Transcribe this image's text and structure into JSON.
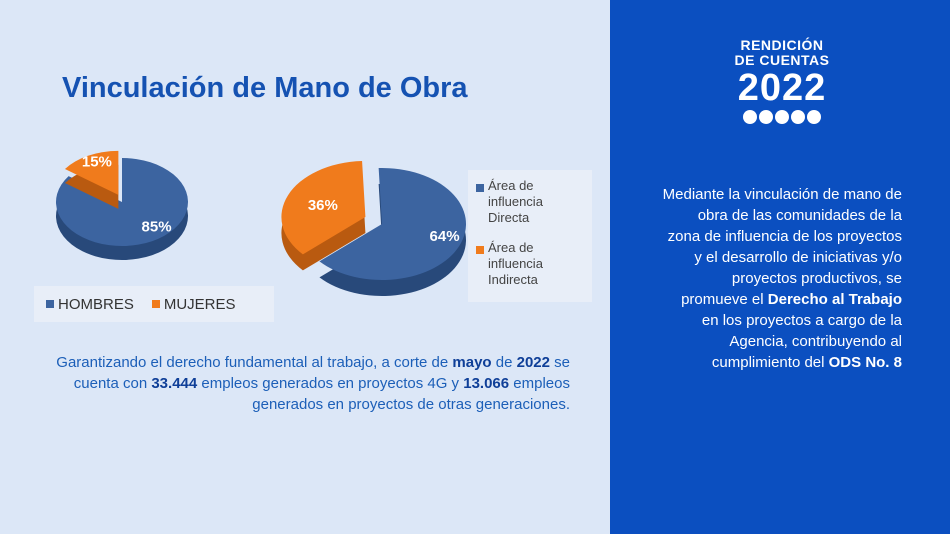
{
  "title": "Vinculación de Mano de Obra",
  "brand": {
    "line1": "RENDICIÓN",
    "line2": "DE CUENTAS",
    "year": "2022"
  },
  "colors": {
    "blue": "#3c64a0",
    "orange": "#f07b1c",
    "panel": "#0b4fc0"
  },
  "chart_data": [
    {
      "type": "pie",
      "categories": [
        "HOMBRES",
        "MUJERES"
      ],
      "values": [
        85,
        15
      ],
      "labels": [
        "85%",
        "15%"
      ]
    },
    {
      "type": "pie",
      "categories": [
        "Área de influencia Directa",
        "Área de influencia Indirecta"
      ],
      "values": [
        64,
        36
      ],
      "labels": [
        "64%",
        "36%"
      ]
    }
  ],
  "legend1": [
    "HOMBRES",
    "MUJERES"
  ],
  "legend2": [
    "Área de influencia Directa",
    "Área de influencia Indirecta"
  ],
  "paragraph": {
    "t1": "Garantizando el derecho fundamental al trabajo, a corte de ",
    "b1": "mayo",
    "t2": " de ",
    "b2": "2022",
    "t3": " se cuenta con ",
    "b3": "33.444",
    "t4": " empleos generados en proyectos 4G y ",
    "b4": "13.066",
    "t5": " empleos generados en proyectos de otras generaciones."
  },
  "right_text": {
    "t1": "Mediante la vinculación de mano de obra de las comunidades de la zona de influencia de los proyectos y el desarrollo de iniciativas y/o proyectos productivos, se promueve el ",
    "b1": "Derecho al Trabajo",
    "t2": " en los proyectos a cargo de la Agencia, contribuyendo al cumplimiento del ",
    "b2": "ODS No. 8"
  }
}
